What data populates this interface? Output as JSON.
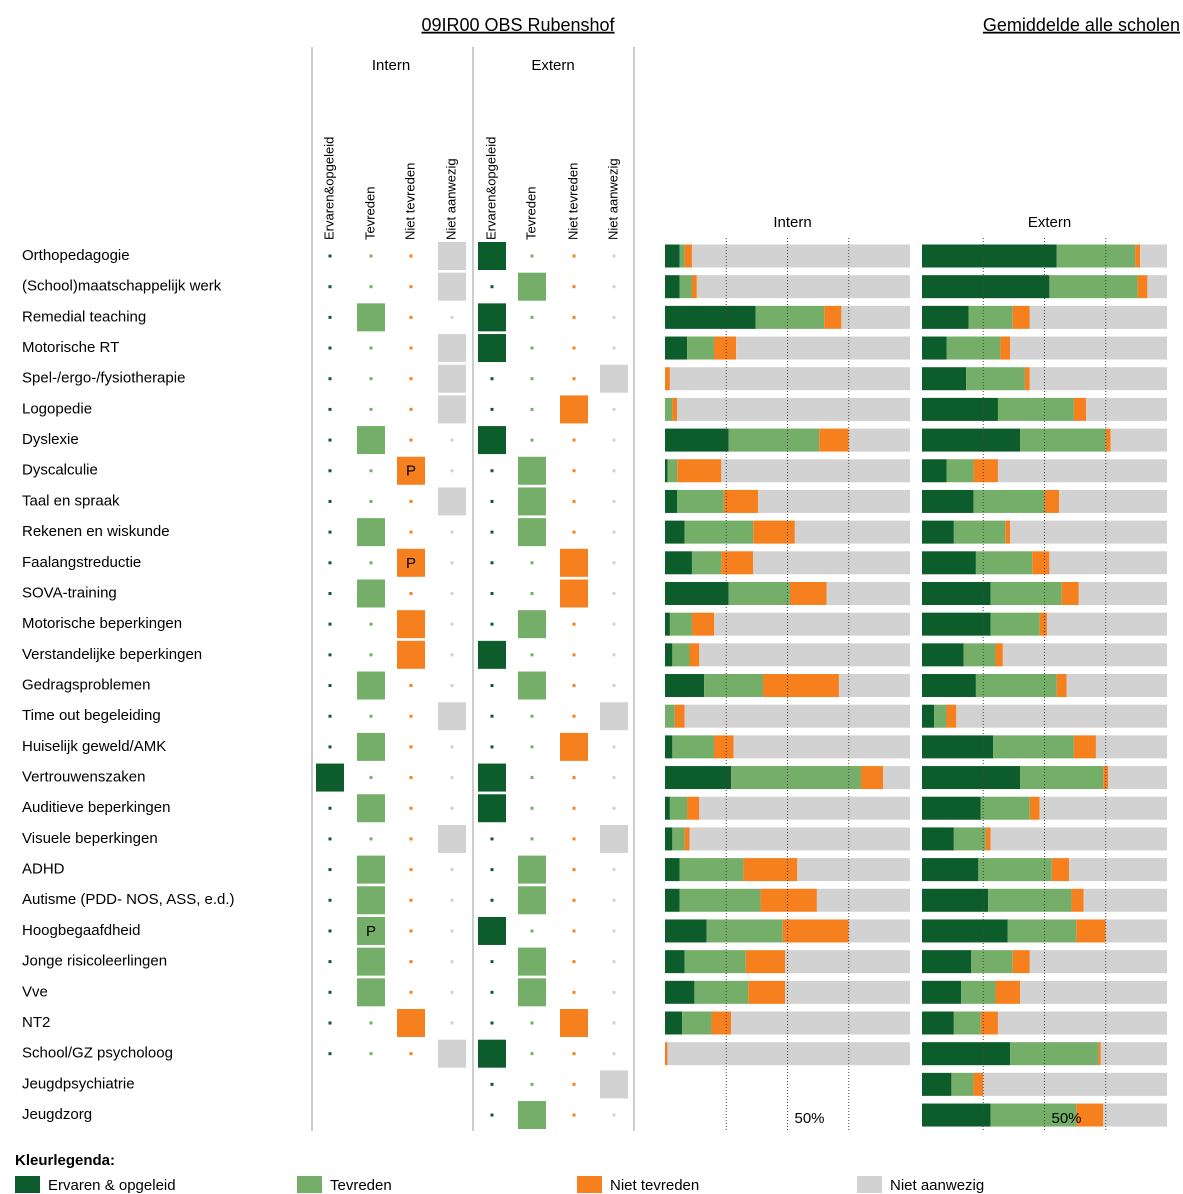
{
  "header": {
    "title": "09IR00 OBS Rubenshof",
    "subtitle": "Gemiddelde alle scholen"
  },
  "matrix": {
    "groups": [
      {
        "name": "Intern",
        "columns": [
          "Ervaren&opgeleid",
          "Tevreden",
          "Niet tevreden",
          "Niet aanwezig"
        ]
      },
      {
        "name": "Extern",
        "columns": [
          "Ervaren&opgeleid",
          "Tevreden",
          "Niet tevreden",
          "Niet aanwezig"
        ]
      }
    ],
    "rows": [
      {
        "label": "Orthopedagogie",
        "intern": [
          0,
          0,
          0,
          1
        ],
        "extern": [
          1,
          0,
          0,
          0
        ]
      },
      {
        "label": "(School)maatschappelijk werk",
        "intern": [
          0,
          0,
          0,
          1
        ],
        "extern": [
          0,
          1,
          0,
          0
        ]
      },
      {
        "label": "Remedial teaching",
        "intern": [
          0,
          1,
          0,
          0
        ],
        "extern": [
          1,
          0,
          0,
          0
        ]
      },
      {
        "label": "Motorische RT",
        "intern": [
          0,
          0,
          0,
          1
        ],
        "extern": [
          1,
          0,
          0,
          0
        ]
      },
      {
        "label": "Spel-/ergo-/fysiotherapie",
        "intern": [
          0,
          0,
          0,
          1
        ],
        "extern": [
          0,
          0,
          0,
          1
        ]
      },
      {
        "label": "Logopedie",
        "intern": [
          0,
          0,
          0,
          1
        ],
        "extern": [
          0,
          0,
          1,
          0
        ]
      },
      {
        "label": "Dyslexie",
        "intern": [
          0,
          1,
          0,
          0
        ],
        "extern": [
          1,
          0,
          0,
          0
        ]
      },
      {
        "label": "Dyscalculie",
        "intern": [
          0,
          0,
          "P",
          0
        ],
        "extern": [
          0,
          1,
          0,
          0
        ]
      },
      {
        "label": "Taal en spraak",
        "intern": [
          0,
          0,
          0,
          1
        ],
        "extern": [
          0,
          1,
          0,
          0
        ]
      },
      {
        "label": "Rekenen en wiskunde",
        "intern": [
          0,
          1,
          0,
          0
        ],
        "extern": [
          0,
          1,
          0,
          0
        ]
      },
      {
        "label": "Faalangstreductie",
        "intern": [
          0,
          0,
          "P",
          0
        ],
        "extern": [
          0,
          0,
          1,
          0
        ]
      },
      {
        "label": "SOVA-training",
        "intern": [
          0,
          1,
          0,
          0
        ],
        "extern": [
          0,
          0,
          1,
          0
        ]
      },
      {
        "label": "Motorische beperkingen",
        "intern": [
          0,
          0,
          1,
          0
        ],
        "extern": [
          0,
          1,
          0,
          0
        ]
      },
      {
        "label": "Verstandelijke beperkingen",
        "intern": [
          0,
          0,
          1,
          0
        ],
        "extern": [
          1,
          0,
          0,
          0
        ]
      },
      {
        "label": "Gedragsproblemen",
        "intern": [
          0,
          1,
          0,
          0
        ],
        "extern": [
          0,
          1,
          0,
          0
        ]
      },
      {
        "label": "Time out begeleiding",
        "intern": [
          0,
          0,
          0,
          1
        ],
        "extern": [
          0,
          0,
          0,
          1
        ]
      },
      {
        "label": "Huiselijk geweld/AMK",
        "intern": [
          0,
          1,
          0,
          0
        ],
        "extern": [
          0,
          0,
          1,
          0
        ]
      },
      {
        "label": "Vertrouwenszaken",
        "intern": [
          1,
          0,
          0,
          0
        ],
        "extern": [
          1,
          0,
          0,
          0
        ]
      },
      {
        "label": "Auditieve beperkingen",
        "intern": [
          0,
          1,
          0,
          0
        ],
        "extern": [
          1,
          0,
          0,
          0
        ]
      },
      {
        "label": "Visuele beperkingen",
        "intern": [
          0,
          0,
          0,
          1
        ],
        "extern": [
          0,
          0,
          0,
          1
        ]
      },
      {
        "label": "ADHD",
        "intern": [
          0,
          1,
          0,
          0
        ],
        "extern": [
          0,
          1,
          0,
          0
        ]
      },
      {
        "label": "Autisme (PDD- NOS, ASS, e.d.)",
        "intern": [
          0,
          1,
          0,
          0
        ],
        "extern": [
          0,
          1,
          0,
          0
        ]
      },
      {
        "label": "Hoogbegaafdheid",
        "intern": [
          0,
          "P",
          0,
          0
        ],
        "extern": [
          1,
          0,
          0,
          0
        ]
      },
      {
        "label": "Jonge risicoleerlingen",
        "intern": [
          0,
          1,
          0,
          0
        ],
        "extern": [
          0,
          1,
          0,
          0
        ]
      },
      {
        "label": "Vve",
        "intern": [
          0,
          1,
          0,
          0
        ],
        "extern": [
          0,
          1,
          0,
          0
        ]
      },
      {
        "label": "NT2",
        "intern": [
          0,
          0,
          1,
          0
        ],
        "extern": [
          0,
          0,
          1,
          0
        ]
      },
      {
        "label": "School/GZ psycholoog",
        "intern": [
          0,
          0,
          0,
          1
        ],
        "extern": [
          1,
          0,
          0,
          0
        ]
      },
      {
        "label": "Jeugdpsychiatrie",
        "intern": null,
        "extern": [
          0,
          0,
          0,
          1
        ]
      },
      {
        "label": "Jeugdzorg",
        "intern": null,
        "extern": [
          0,
          1,
          0,
          0
        ]
      }
    ]
  },
  "chart_data": [
    {
      "type": "bar",
      "title": "Intern",
      "xlim": [
        0,
        100
      ],
      "grid": [
        25,
        50,
        75
      ],
      "xticks": [
        {
          "value": 50,
          "label": "50%"
        }
      ],
      "series": [
        {
          "values": [
            6,
            6,
            37,
            9,
            0,
            0,
            26,
            1,
            5,
            8,
            11,
            26,
            2,
            3,
            16,
            0,
            3,
            27,
            2,
            3,
            6,
            6,
            17,
            8,
            12,
            7,
            0,
            null,
            null
          ]
        },
        {
          "values": [
            2,
            5,
            28,
            11,
            0,
            3,
            37,
            4,
            19,
            28,
            12,
            25,
            9,
            7,
            24,
            4,
            17,
            53,
            7,
            5,
            26,
            33,
            31,
            25,
            22,
            12,
            0,
            null,
            null
          ]
        },
        {
          "values": [
            3,
            2,
            7,
            9,
            2,
            2,
            12,
            18,
            14,
            17,
            13,
            15,
            9,
            4,
            31,
            4,
            8,
            9,
            5,
            2,
            22,
            23,
            27,
            16,
            15,
            8,
            1,
            null,
            null
          ]
        },
        {
          "values": [
            89,
            87,
            28,
            71,
            98,
            95,
            25,
            77,
            62,
            47,
            64,
            34,
            80,
            86,
            29,
            92,
            72,
            11,
            86,
            90,
            46,
            38,
            25,
            51,
            51,
            73,
            99,
            null,
            null
          ]
        }
      ]
    },
    {
      "type": "bar",
      "title": "Extern",
      "xlim": [
        0,
        100
      ],
      "grid": [
        25,
        50,
        75
      ],
      "xticks": [
        {
          "value": 50,
          "label": "50%"
        }
      ],
      "series": [
        {
          "values": [
            55,
            52,
            19,
            10,
            18,
            31,
            40,
            10,
            21,
            13,
            22,
            28,
            28,
            17,
            22,
            5,
            29,
            40,
            24,
            13,
            23,
            27,
            35,
            20,
            16,
            13,
            36,
            12,
            28
          ]
        },
        {
          "values": [
            32,
            36,
            18,
            22,
            24,
            31,
            35,
            11,
            29,
            21,
            23,
            29,
            20,
            13,
            33,
            5,
            33,
            34,
            20,
            13,
            30,
            34,
            28,
            17,
            14,
            11,
            36,
            9,
            35
          ]
        },
        {
          "values": [
            2,
            4,
            7,
            4,
            2,
            5,
            2,
            10,
            6,
            2,
            7,
            7,
            3,
            3,
            4,
            4,
            9,
            2,
            4,
            2,
            7,
            5,
            12,
            7,
            10,
            7,
            1,
            4,
            11
          ]
        },
        {
          "values": [
            11,
            8,
            56,
            64,
            56,
            33,
            23,
            69,
            44,
            64,
            48,
            36,
            49,
            67,
            41,
            86,
            29,
            24,
            52,
            72,
            40,
            34,
            25,
            56,
            60,
            69,
            27,
            75,
            26
          ]
        }
      ]
    }
  ],
  "legend": {
    "title": "Kleurlegenda:",
    "items": [
      {
        "name": "Ervaren & opgeleid",
        "color": "#0d5c2c"
      },
      {
        "name": "Tevreden",
        "color": "#74ae68"
      },
      {
        "name": "Niet tevreden",
        "color": "#f7801e"
      },
      {
        "name": "Niet aanwezig",
        "color": "#d2d2d2"
      }
    ]
  }
}
